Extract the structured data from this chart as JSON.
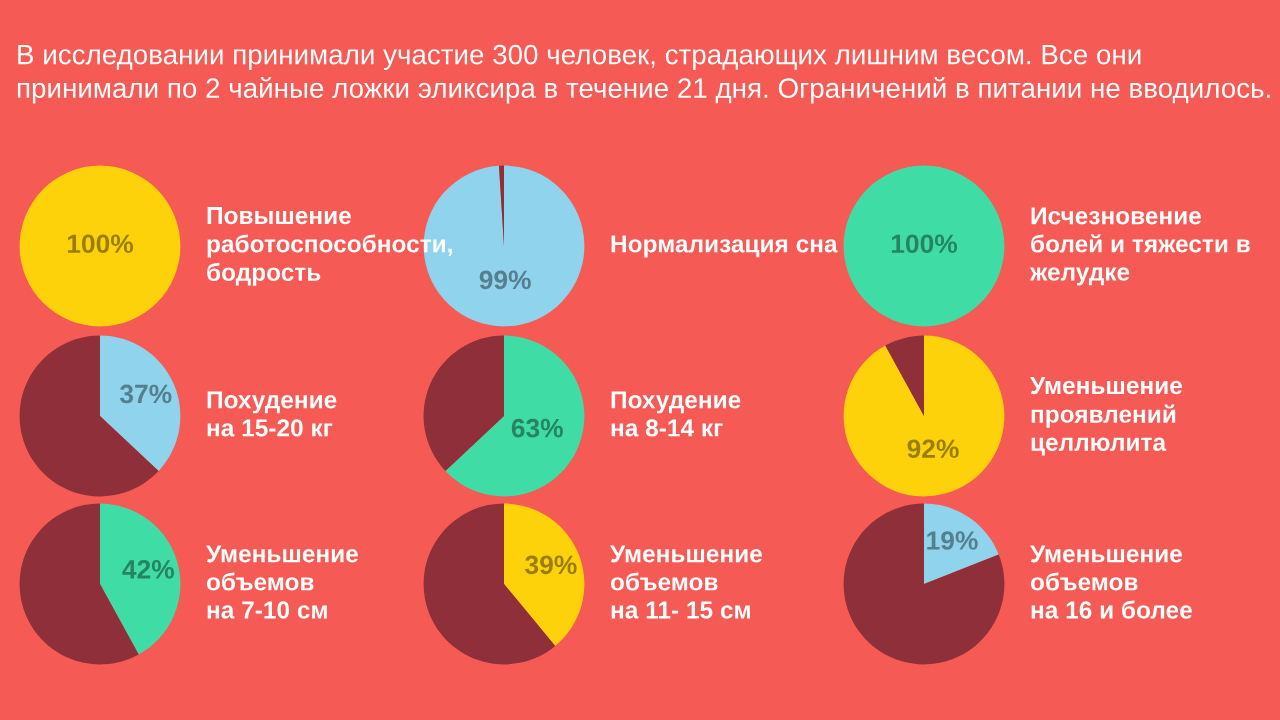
{
  "chart_data": [
    {
      "type": "other",
      "title": "В исследовании принимали участие 300 человек, страдающих лишним весом. Все они принимали по 2 чайные ложки эликсира в течение 21 дня. Ограничений в питании не вводилось."
    },
    {
      "type": "pie",
      "title": "Повышение\nработоспособности,\nбодрость",
      "categories": [
        null
      ],
      "values": [
        100
      ],
      "colors": [
        "#fdd20a"
      ],
      "value_labels": [
        "100%"
      ]
    },
    {
      "type": "pie",
      "title": "Нормализация сна",
      "categories": [
        null,
        null
      ],
      "values": [
        99,
        1
      ],
      "colors": [
        "#8fd3ec",
        "#8e2f3a"
      ],
      "value_labels": [
        "99%",
        null
      ]
    },
    {
      "type": "pie",
      "title": "Исчезновение\nболей и тяжести в\nжелудке",
      "categories": [
        null
      ],
      "values": [
        100
      ],
      "colors": [
        "#3fdca6"
      ],
      "value_labels": [
        "100%"
      ]
    },
    {
      "type": "pie",
      "title": "Похудение\nна 15-20 кг",
      "categories": [
        null,
        null
      ],
      "values": [
        37,
        63
      ],
      "colors": [
        "#8fd3ec",
        "#8e2f3a"
      ],
      "value_labels": [
        "37%",
        null
      ]
    },
    {
      "type": "pie",
      "title": "Похудение\nна 8-14 кг",
      "categories": [
        null,
        null
      ],
      "values": [
        63,
        37
      ],
      "colors": [
        "#3fdca6",
        "#8e2f3a"
      ],
      "value_labels": [
        "63%",
        null
      ]
    },
    {
      "type": "pie",
      "title": "Уменьшение\nпроявлений\nцеллюлита",
      "categories": [
        null,
        null
      ],
      "values": [
        92,
        8
      ],
      "colors": [
        "#fdd20a",
        "#8e2f3a"
      ],
      "value_labels": [
        "92%",
        null
      ]
    },
    {
      "type": "pie",
      "title": "Уменьшение\nобъемов\nна 7-10 см",
      "categories": [
        null,
        null
      ],
      "values": [
        42,
        58
      ],
      "colors": [
        "#3fdca6",
        "#8e2f3a"
      ],
      "value_labels": [
        "42%",
        null
      ]
    },
    {
      "type": "pie",
      "title": "Уменьшение\nобъемов\nна 11- 15 см",
      "categories": [
        null,
        null
      ],
      "values": [
        39,
        61
      ],
      "colors": [
        "#fdd20a",
        "#8e2f3a"
      ],
      "value_labels": [
        "39%",
        null
      ]
    },
    {
      "type": "pie",
      "title": "Уменьшение\nобъемов\nна 16 и более",
      "categories": [
        null,
        null
      ],
      "values": [
        19,
        81
      ],
      "colors": [
        "#8fd3ec",
        "#8e2f3a"
      ],
      "value_labels": [
        "19%",
        null
      ]
    }
  ]
}
